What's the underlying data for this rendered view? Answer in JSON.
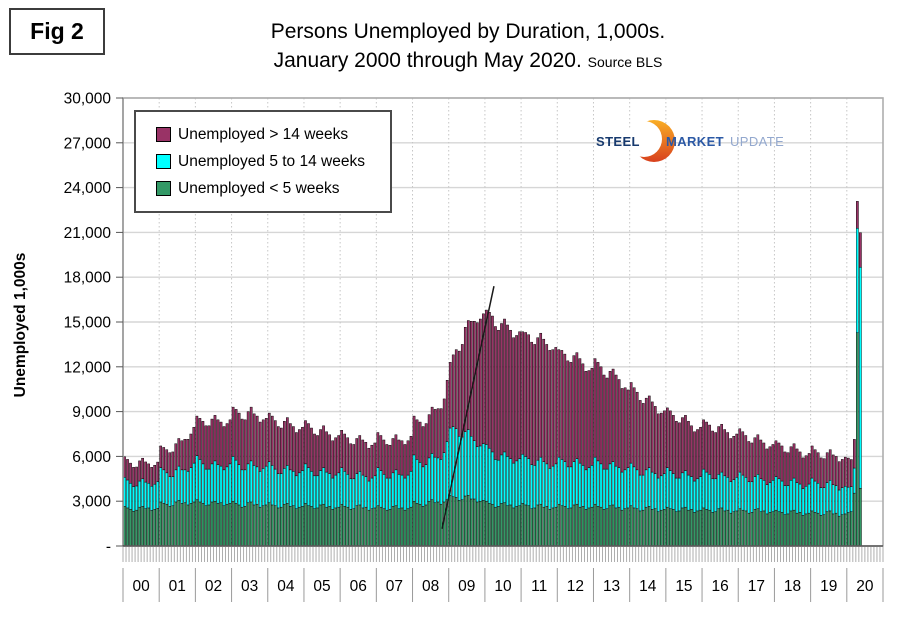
{
  "fig_label": "Fig 2",
  "title": {
    "line1": "Persons Unemployed by Duration, 1,000s.",
    "line2": "January 2000 through May 2020.",
    "source": "Source BLS"
  },
  "y_axis": {
    "title": "Unemployed 1,000s",
    "tick_labels": [
      "30,000",
      "27,000",
      "24,000",
      "21,000",
      "18,000",
      "15,000",
      "12,000",
      "9,000",
      "6,000",
      "3,000",
      "-"
    ]
  },
  "legend": [
    {
      "label": "Unemployed > 14 weeks",
      "color": "#993366"
    },
    {
      "label": "Unemployed 5 to 14 weeks",
      "color": "#00FFFF"
    },
    {
      "label": "Unemployed < 5 weeks",
      "color": "#339966"
    }
  ],
  "logo": {
    "word1": "STEEL",
    "word2": "MARKET",
    "word3": "UPDATE"
  },
  "chart_data": {
    "type": "bar",
    "stacked": true,
    "title": "Persons Unemployed by Duration, 1,000s. January 2000 through May 2020",
    "x_unit": "month",
    "start": "2000-01",
    "end": "2020-05",
    "y_max": 30000,
    "y_gridline_step": 3000,
    "grid": true,
    "legend_position": "top-left",
    "year_labels": [
      "00",
      "01",
      "02",
      "03",
      "04",
      "05",
      "06",
      "07",
      "08",
      "09",
      "10",
      "11",
      "12",
      "13",
      "14",
      "15",
      "16",
      "17",
      "18",
      "19",
      "20"
    ],
    "slots_per_year": 12,
    "total_slots": 252,
    "annotation_line": {
      "from": {
        "slot": 105.8,
        "value": 1150
      },
      "to": {
        "slot": 123.0,
        "value": 17400
      }
    },
    "series": [
      {
        "name": "Unemployed < 5 weeks",
        "color": "#339966",
        "values": [
          2650,
          2550,
          2450,
          2330,
          2400,
          2600,
          2650,
          2500,
          2550,
          2380,
          2450,
          2520,
          2950,
          2850,
          2800,
          2650,
          2700,
          2950,
          3050,
          2850,
          2900,
          2750,
          2850,
          2950,
          3100,
          2950,
          2850,
          2700,
          2750,
          2950,
          3000,
          2850,
          2900,
          2700,
          2800,
          2850,
          3000,
          2850,
          2750,
          2600,
          2650,
          2900,
          2950,
          2750,
          2800,
          2600,
          2700,
          2750,
          2900,
          2750,
          2700,
          2550,
          2600,
          2800,
          2850,
          2650,
          2700,
          2500,
          2600,
          2650,
          2850,
          2700,
          2650,
          2500,
          2550,
          2750,
          2800,
          2600,
          2650,
          2450,
          2550,
          2600,
          2800,
          2650,
          2600,
          2450,
          2500,
          2700,
          2750,
          2550,
          2600,
          2400,
          2500,
          2550,
          2700,
          2600,
          2500,
          2400,
          2450,
          2650,
          2700,
          2500,
          2550,
          2400,
          2500,
          2600,
          3000,
          2850,
          2800,
          2650,
          2750,
          3000,
          3100,
          2900,
          2950,
          2800,
          2950,
          3100,
          3400,
          3300,
          3250,
          3050,
          3100,
          3350,
          3400,
          3150,
          3150,
          2950,
          3000,
          3050,
          3000,
          2850,
          2800,
          2600,
          2650,
          2850,
          2900,
          2700,
          2750,
          2550,
          2650,
          2700,
          2850,
          2750,
          2700,
          2500,
          2550,
          2750,
          2800,
          2600,
          2650,
          2450,
          2550,
          2600,
          2800,
          2700,
          2650,
          2500,
          2550,
          2750,
          2800,
          2600,
          2650,
          2450,
          2550,
          2600,
          2800,
          2650,
          2600,
          2450,
          2500,
          2700,
          2750,
          2550,
          2600,
          2400,
          2500,
          2550,
          2700,
          2550,
          2500,
          2350,
          2400,
          2600,
          2650,
          2450,
          2500,
          2300,
          2400,
          2450,
          2600,
          2500,
          2450,
          2300,
          2350,
          2550,
          2600,
          2400,
          2450,
          2250,
          2350,
          2400,
          2550,
          2450,
          2400,
          2250,
          2300,
          2500,
          2550,
          2350,
          2400,
          2200,
          2300,
          2350,
          2500,
          2400,
          2350,
          2200,
          2250,
          2450,
          2500,
          2300,
          2350,
          2150,
          2250,
          2300,
          2400,
          2300,
          2250,
          2100,
          2150,
          2350,
          2400,
          2200,
          2250,
          2050,
          2150,
          2200,
          2350,
          2250,
          2200,
          2050,
          2100,
          2300,
          2350,
          2150,
          2200,
          2000,
          2100,
          2150,
          2240,
          2300,
          3540,
          14280,
          3860
        ]
      },
      {
        "name": "Unemployed 5 to 14 weeks",
        "color": "#00FFFF",
        "values": [
          1950,
          1870,
          1750,
          1640,
          1620,
          1750,
          1850,
          1780,
          1650,
          1620,
          1690,
          1800,
          2300,
          2250,
          2100,
          2000,
          1950,
          2150,
          2300,
          2250,
          2200,
          2250,
          2400,
          2600,
          2950,
          2850,
          2650,
          2450,
          2400,
          2550,
          2700,
          2600,
          2450,
          2400,
          2500,
          2650,
          3000,
          2900,
          2700,
          2500,
          2450,
          2600,
          2750,
          2650,
          2500,
          2400,
          2500,
          2600,
          2750,
          2650,
          2450,
          2300,
          2250,
          2400,
          2550,
          2450,
          2300,
          2200,
          2300,
          2400,
          2650,
          2550,
          2350,
          2200,
          2150,
          2300,
          2450,
          2350,
          2200,
          2100,
          2200,
          2300,
          2450,
          2350,
          2200,
          2050,
          2000,
          2150,
          2250,
          2200,
          2050,
          1950,
          2050,
          2150,
          2550,
          2450,
          2300,
          2150,
          2100,
          2250,
          2400,
          2300,
          2200,
          2150,
          2250,
          2400,
          3100,
          2950,
          2800,
          2650,
          2700,
          2900,
          3100,
          3050,
          2950,
          3000,
          3300,
          3900,
          4500,
          4700,
          4600,
          4300,
          4200,
          4300,
          4400,
          4200,
          3900,
          3700,
          3700,
          3800,
          3800,
          3700,
          3500,
          3200,
          3100,
          3250,
          3400,
          3300,
          3100,
          3000,
          3050,
          3150,
          3300,
          3250,
          3150,
          2950,
          2850,
          3000,
          3150,
          3050,
          2850,
          2750,
          2800,
          2900,
          3150,
          3100,
          3000,
          2800,
          2750,
          2900,
          3050,
          2950,
          2750,
          2650,
          2700,
          2800,
          3150,
          3050,
          2900,
          2700,
          2650,
          2800,
          2900,
          2800,
          2650,
          2550,
          2600,
          2700,
          2850,
          2750,
          2600,
          2400,
          2350,
          2500,
          2600,
          2500,
          2350,
          2250,
          2300,
          2400,
          2650,
          2550,
          2400,
          2250,
          2200,
          2350,
          2450,
          2350,
          2200,
          2100,
          2150,
          2250,
          2600,
          2500,
          2400,
          2250,
          2200,
          2300,
          2400,
          2350,
          2200,
          2100,
          2150,
          2250,
          2450,
          2350,
          2250,
          2100,
          2050,
          2200,
          2300,
          2200,
          2050,
          1950,
          2000,
          2100,
          2250,
          2200,
          2100,
          1950,
          1900,
          2050,
          2150,
          2050,
          1900,
          1800,
          1850,
          1950,
          2200,
          2100,
          2000,
          1850,
          1800,
          1950,
          2050,
          1950,
          1850,
          1750,
          1800,
          1850,
          1700,
          1670,
          1680,
          7000,
          14810
        ]
      },
      {
        "name": "Unemployed > 14 weeks",
        "color": "#993366",
        "values": [
          1380,
          1380,
          1350,
          1300,
          1270,
          1350,
          1380,
          1350,
          1300,
          1270,
          1270,
          1300,
          1450,
          1500,
          1550,
          1600,
          1650,
          1750,
          1850,
          1950,
          2050,
          2150,
          2250,
          2400,
          2650,
          2750,
          2850,
          2900,
          2900,
          3000,
          3050,
          3000,
          2950,
          2900,
          2900,
          2950,
          3300,
          3400,
          3450,
          3400,
          3350,
          3500,
          3600,
          3450,
          3400,
          3300,
          3250,
          3200,
          3250,
          3300,
          3250,
          3150,
          3050,
          3150,
          3200,
          3100,
          3000,
          2900,
          2900,
          2900,
          2900,
          2950,
          2900,
          2800,
          2700,
          2750,
          2800,
          2700,
          2600,
          2500,
          2500,
          2500,
          2500,
          2500,
          2450,
          2350,
          2300,
          2350,
          2400,
          2350,
          2300,
          2200,
          2200,
          2200,
          2350,
          2350,
          2300,
          2250,
          2200,
          2300,
          2350,
          2300,
          2300,
          2250,
          2300,
          2350,
          2600,
          2650,
          2700,
          2700,
          2750,
          2900,
          3100,
          3200,
          3300,
          3400,
          3600,
          4100,
          4400,
          4800,
          5300,
          5700,
          6200,
          7000,
          7300,
          7700,
          8000,
          8300,
          8500,
          8700,
          9000,
          9100,
          9100,
          8900,
          8700,
          8800,
          8900,
          8800,
          8600,
          8400,
          8400,
          8500,
          8200,
          8300,
          8300,
          8200,
          8100,
          8200,
          8300,
          8200,
          8000,
          7900,
          7800,
          7800,
          7200,
          7300,
          7200,
          7100,
          7000,
          7100,
          7100,
          7000,
          6800,
          6600,
          6500,
          6500,
          6600,
          6600,
          6500,
          6300,
          6100,
          6200,
          6200,
          6100,
          5900,
          5600,
          5500,
          5200,
          5400,
          5300,
          5200,
          5000,
          4800,
          4800,
          4800,
          4700,
          4500,
          4300,
          4200,
          4200,
          4000,
          4000,
          3900,
          3800,
          3700,
          3700,
          3700,
          3600,
          3400,
          3300,
          3300,
          3300,
          3300,
          3350,
          3300,
          3200,
          3100,
          3200,
          3200,
          3100,
          3000,
          2900,
          2900,
          2900,
          2900,
          2900,
          2800,
          2700,
          2600,
          2600,
          2650,
          2600,
          2500,
          2400,
          2400,
          2400,
          2400,
          2400,
          2350,
          2250,
          2200,
          2250,
          2300,
          2250,
          2150,
          2050,
          2050,
          2050,
          2150,
          2100,
          2050,
          2000,
          1950,
          2000,
          2050,
          2000,
          1950,
          1900,
          1900,
          1950,
          1950,
          1820,
          1920,
          1800,
          2310
        ]
      }
    ]
  }
}
